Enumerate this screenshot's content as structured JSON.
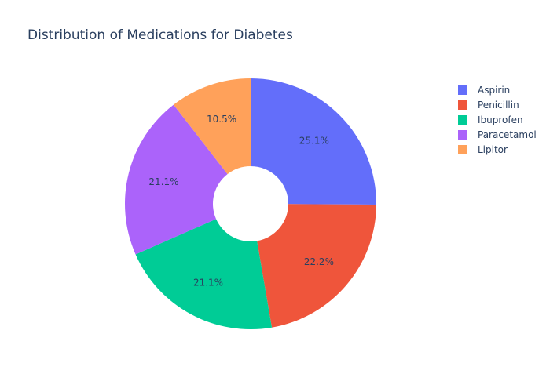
{
  "chart_data": {
    "type": "pie",
    "title": "Distribution of Medications for Diabetes",
    "hole": true,
    "legend_position": "right",
    "slices": [
      {
        "label": "Aspirin",
        "percent": 25.1,
        "percent_label": "25.1%",
        "color": "#636efa"
      },
      {
        "label": "Penicillin",
        "percent": 22.2,
        "percent_label": "22.2%",
        "color": "#ef553b"
      },
      {
        "label": "Ibuprofen",
        "percent": 21.1,
        "percent_label": "21.1%",
        "color": "#00cc96"
      },
      {
        "label": "Paracetamol",
        "percent": 21.1,
        "percent_label": "21.1%",
        "color": "#ab63fa"
      },
      {
        "label": "Lipitor",
        "percent": 10.5,
        "percent_label": "10.5%",
        "color": "#ffa15a"
      }
    ]
  }
}
